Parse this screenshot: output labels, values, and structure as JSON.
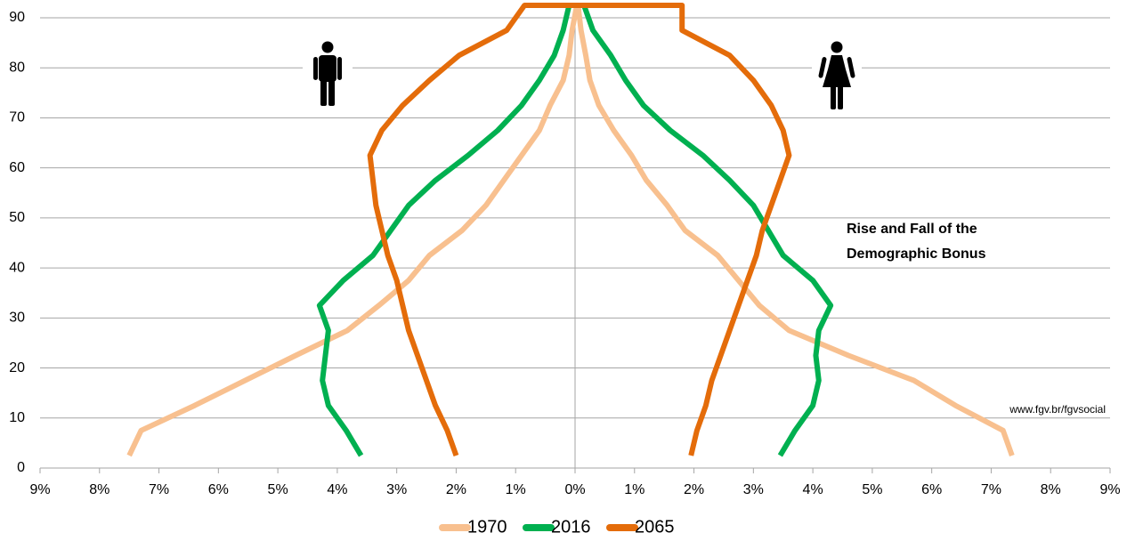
{
  "chart_data": {
    "type": "line",
    "annotation": [
      "Rise and Fall of the",
      "Demographic Bonus"
    ],
    "source": "www.fgv.br/fgvsocial",
    "xlim": [
      -9,
      9
    ],
    "xticks": [
      {
        "value": -9,
        "label": "9%"
      },
      {
        "value": -8,
        "label": "8%"
      },
      {
        "value": -7,
        "label": "7%"
      },
      {
        "value": -6,
        "label": "6%"
      },
      {
        "value": -5,
        "label": "5%"
      },
      {
        "value": -4,
        "label": "4%"
      },
      {
        "value": -3,
        "label": "3%"
      },
      {
        "value": -2,
        "label": "2%"
      },
      {
        "value": -1,
        "label": "1%"
      },
      {
        "value": 0,
        "label": "0%"
      },
      {
        "value": 1,
        "label": "1%"
      },
      {
        "value": 2,
        "label": "2%"
      },
      {
        "value": 3,
        "label": "3%"
      },
      {
        "value": 4,
        "label": "4%"
      },
      {
        "value": 5,
        "label": "5%"
      },
      {
        "value": 6,
        "label": "6%"
      },
      {
        "value": 7,
        "label": "7%"
      },
      {
        "value": 8,
        "label": "8%"
      },
      {
        "value": 9,
        "label": "9%"
      }
    ],
    "ylim": [
      0,
      93
    ],
    "yticks": [
      0,
      10,
      20,
      30,
      40,
      50,
      60,
      70,
      80,
      90
    ],
    "grid": true,
    "legend": "bottom",
    "series": [
      {
        "name": "1970",
        "color": "#f8c08f",
        "x": [
          -7.5,
          -7.3,
          -6.4,
          -5.55,
          -4.7,
          -3.83,
          -3.3,
          -2.8,
          -2.45,
          -1.9,
          -1.5,
          -1.2,
          -0.9,
          -0.6,
          -0.42,
          -0.2,
          -0.1,
          -0.05,
          0.03,
          0.05,
          0.1,
          0.18,
          0.25,
          0.4,
          0.65,
          0.95,
          1.2,
          1.55,
          1.85,
          2.4,
          2.75,
          3.1,
          3.6,
          4.6,
          5.7,
          6.4,
          7.2,
          7.35
        ],
        "y": [
          2.5,
          7.5,
          12.5,
          17.5,
          22.5,
          27.5,
          32.5,
          37.5,
          42.5,
          47.5,
          52.5,
          57.5,
          62.5,
          67.5,
          72.5,
          77.5,
          82.5,
          87.5,
          92.5,
          92.5,
          87.5,
          82.5,
          77.5,
          72.5,
          67.5,
          62.5,
          57.5,
          52.5,
          47.5,
          42.5,
          37.5,
          32.5,
          27.5,
          22.5,
          17.5,
          12.5,
          7.5,
          2.5
        ]
      },
      {
        "name": "2016",
        "color": "#00b050",
        "x": [
          -3.6,
          -3.85,
          -4.15,
          -4.25,
          -4.2,
          -4.15,
          -4.3,
          -3.9,
          -3.4,
          -3.1,
          -2.8,
          -2.35,
          -1.8,
          -1.3,
          -0.9,
          -0.6,
          -0.35,
          -0.2,
          -0.1,
          0.15,
          0.3,
          0.6,
          0.85,
          1.15,
          1.6,
          2.15,
          2.6,
          3.0,
          3.25,
          3.5,
          4.0,
          4.3,
          4.1,
          4.05,
          4.1,
          4.0,
          3.7,
          3.45
        ],
        "y": [
          2.5,
          7.5,
          12.5,
          17.5,
          22.5,
          27.5,
          32.5,
          37.5,
          42.5,
          47.5,
          52.5,
          57.5,
          62.5,
          67.5,
          72.5,
          77.5,
          82.5,
          87.5,
          92.5,
          92.5,
          87.5,
          82.5,
          77.5,
          72.5,
          67.5,
          62.5,
          57.5,
          52.5,
          47.5,
          42.5,
          37.5,
          32.5,
          27.5,
          22.5,
          17.5,
          12.5,
          7.5,
          2.5
        ]
      },
      {
        "name": "2065",
        "color": "#e46c0a",
        "x": [
          -2.0,
          -2.15,
          -2.35,
          -2.5,
          -2.65,
          -2.8,
          -2.9,
          -3.0,
          -3.15,
          -3.25,
          -3.35,
          -3.4,
          -3.45,
          -3.25,
          -2.9,
          -2.45,
          -1.95,
          -1.15,
          -0.85,
          1.8,
          1.8,
          2.6,
          3.0,
          3.3,
          3.5,
          3.6,
          3.45,
          3.3,
          3.15,
          3.05,
          2.9,
          2.75,
          2.6,
          2.45,
          2.3,
          2.2,
          2.05,
          1.95
        ],
        "y": [
          2.5,
          7.5,
          12.5,
          17.5,
          22.5,
          27.5,
          32.5,
          37.5,
          42.5,
          47.5,
          52.5,
          57.5,
          62.5,
          67.5,
          72.5,
          77.5,
          82.5,
          87.5,
          92.5,
          92.5,
          87.5,
          82.5,
          77.5,
          72.5,
          67.5,
          62.5,
          57.5,
          52.5,
          47.5,
          42.5,
          37.5,
          32.5,
          27.5,
          22.5,
          17.5,
          12.5,
          7.5,
          2.5
        ]
      }
    ]
  }
}
